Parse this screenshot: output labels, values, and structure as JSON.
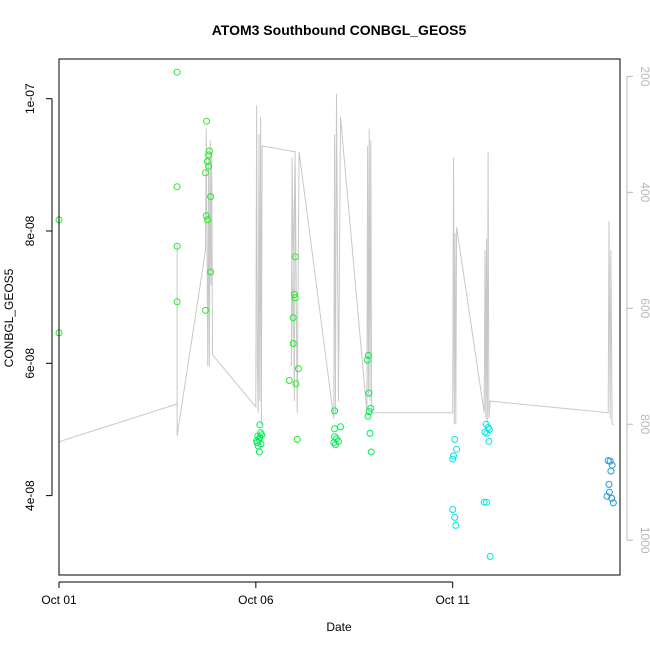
{
  "chart_data": {
    "type": "scatter",
    "title": "ATOM3 Southbound CONBGL_GEOS5",
    "xlabel": "Date",
    "ylabel": "CONBGL_GEOS5",
    "x_ticks": [
      "Oct 01",
      "Oct 06",
      "Oct 11"
    ],
    "x_tick_values": [
      1,
      6,
      11
    ],
    "xlim": [
      1,
      15.25
    ],
    "y_ticks": [
      "4e-08",
      "6e-08",
      "8e-08",
      "1e-07"
    ],
    "y_tick_values": [
      4e-08,
      6e-08,
      8e-08,
      1e-07
    ],
    "ylim": [
      2.8e-08,
      1.06e-07
    ],
    "y2_ticks": [
      "200",
      "400",
      "600",
      "800",
      "1000"
    ],
    "y2_tick_values": [
      200,
      400,
      600,
      800,
      1000
    ],
    "y2lim": [
      170,
      1060
    ],
    "y2_reversed": true,
    "grid": false,
    "colors": {
      "altitude_line": "#c8c8c8",
      "green": "#22ee22",
      "green2": "#00ee55",
      "cyan": "#00e5e5",
      "blue": "#1a9be0",
      "frame": "#000000",
      "right_axis": "#b8b8b8"
    },
    "points": [
      {
        "x": 1.0,
        "y": 8.17e-08,
        "c": "green"
      },
      {
        "x": 1.0,
        "y": 6.46e-08,
        "c": "green"
      },
      {
        "x": 4.0,
        "y": 1.04e-07,
        "c": "green"
      },
      {
        "x": 4.0,
        "y": 8.67e-08,
        "c": "green"
      },
      {
        "x": 4.0,
        "y": 7.77e-08,
        "c": "green"
      },
      {
        "x": 4.0,
        "y": 6.93e-08,
        "c": "green"
      },
      {
        "x": 4.75,
        "y": 9.66e-08,
        "c": "green"
      },
      {
        "x": 4.72,
        "y": 8.88e-08,
        "c": "green"
      },
      {
        "x": 4.77,
        "y": 9.05e-08,
        "c": "green"
      },
      {
        "x": 4.8,
        "y": 9.15e-08,
        "c": "green"
      },
      {
        "x": 4.82,
        "y": 9.21e-08,
        "c": "green"
      },
      {
        "x": 4.8,
        "y": 8.98e-08,
        "c": "green"
      },
      {
        "x": 4.85,
        "y": 8.52e-08,
        "c": "green"
      },
      {
        "x": 4.74,
        "y": 8.23e-08,
        "c": "green"
      },
      {
        "x": 4.77,
        "y": 8.17e-08,
        "c": "green"
      },
      {
        "x": 4.85,
        "y": 7.38e-08,
        "c": "green"
      },
      {
        "x": 4.72,
        "y": 6.8e-08,
        "c": "green"
      },
      {
        "x": 6.1,
        "y": 5.07e-08,
        "c": "green2"
      },
      {
        "x": 6.12,
        "y": 4.95e-08,
        "c": "green2"
      },
      {
        "x": 6.05,
        "y": 4.9e-08,
        "c": "green2"
      },
      {
        "x": 6.08,
        "y": 4.85e-08,
        "c": "green2"
      },
      {
        "x": 6.03,
        "y": 4.8e-08,
        "c": "green2"
      },
      {
        "x": 6.1,
        "y": 4.88e-08,
        "c": "green2"
      },
      {
        "x": 6.06,
        "y": 4.75e-08,
        "c": "green2"
      },
      {
        "x": 6.09,
        "y": 4.66e-08,
        "c": "green2"
      },
      {
        "x": 6.15,
        "y": 4.92e-08,
        "c": "green2"
      },
      {
        "x": 6.02,
        "y": 4.83e-08,
        "c": "green2"
      },
      {
        "x": 6.13,
        "y": 4.78e-08,
        "c": "green2"
      },
      {
        "x": 7.0,
        "y": 7.61e-08,
        "c": "green"
      },
      {
        "x": 6.98,
        "y": 7.04e-08,
        "c": "green"
      },
      {
        "x": 7.0,
        "y": 6.99e-08,
        "c": "green"
      },
      {
        "x": 6.95,
        "y": 6.69e-08,
        "c": "green"
      },
      {
        "x": 6.95,
        "y": 6.3e-08,
        "c": "green"
      },
      {
        "x": 7.08,
        "y": 5.92e-08,
        "c": "green"
      },
      {
        "x": 6.85,
        "y": 5.74e-08,
        "c": "green"
      },
      {
        "x": 7.02,
        "y": 5.69e-08,
        "c": "green"
      },
      {
        "x": 7.05,
        "y": 4.85e-08,
        "c": "green"
      },
      {
        "x": 8.0,
        "y": 5.28e-08,
        "c": "green2"
      },
      {
        "x": 8.0,
        "y": 5.01e-08,
        "c": "green2"
      },
      {
        "x": 8.15,
        "y": 5.04e-08,
        "c": "green2"
      },
      {
        "x": 8.0,
        "y": 4.89e-08,
        "c": "green2"
      },
      {
        "x": 8.05,
        "y": 4.86e-08,
        "c": "green2"
      },
      {
        "x": 7.98,
        "y": 4.8e-08,
        "c": "green2"
      },
      {
        "x": 8.1,
        "y": 4.82e-08,
        "c": "green2"
      },
      {
        "x": 8.02,
        "y": 4.77e-08,
        "c": "green2"
      },
      {
        "x": 8.86,
        "y": 6.12e-08,
        "c": "green2"
      },
      {
        "x": 8.83,
        "y": 6.05e-08,
        "c": "green2"
      },
      {
        "x": 8.87,
        "y": 5.55e-08,
        "c": "green2"
      },
      {
        "x": 8.92,
        "y": 5.32e-08,
        "c": "green2"
      },
      {
        "x": 8.88,
        "y": 5.27e-08,
        "c": "green2"
      },
      {
        "x": 8.85,
        "y": 5.2e-08,
        "c": "green2"
      },
      {
        "x": 8.9,
        "y": 4.94e-08,
        "c": "green2"
      },
      {
        "x": 8.93,
        "y": 4.66e-08,
        "c": "green2"
      },
      {
        "x": 11.05,
        "y": 4.85e-08,
        "c": "cyan"
      },
      {
        "x": 11.1,
        "y": 4.7e-08,
        "c": "cyan"
      },
      {
        "x": 11.02,
        "y": 4.6e-08,
        "c": "cyan"
      },
      {
        "x": 11.0,
        "y": 4.55e-08,
        "c": "cyan"
      },
      {
        "x": 11.0,
        "y": 3.79e-08,
        "c": "cyan"
      },
      {
        "x": 11.05,
        "y": 3.67e-08,
        "c": "cyan"
      },
      {
        "x": 11.08,
        "y": 3.55e-08,
        "c": "cyan"
      },
      {
        "x": 11.85,
        "y": 5.08e-08,
        "c": "cyan"
      },
      {
        "x": 11.9,
        "y": 5.03e-08,
        "c": "cyan"
      },
      {
        "x": 11.82,
        "y": 4.96e-08,
        "c": "cyan"
      },
      {
        "x": 11.87,
        "y": 4.94e-08,
        "c": "cyan"
      },
      {
        "x": 11.93,
        "y": 5e-08,
        "c": "cyan"
      },
      {
        "x": 11.92,
        "y": 4.82e-08,
        "c": "cyan"
      },
      {
        "x": 11.8,
        "y": 3.9e-08,
        "c": "cyan"
      },
      {
        "x": 11.86,
        "y": 3.9e-08,
        "c": "cyan"
      },
      {
        "x": 11.95,
        "y": 3.08e-08,
        "c": "cyan"
      },
      {
        "x": 14.95,
        "y": 4.53e-08,
        "c": "blue"
      },
      {
        "x": 15.0,
        "y": 4.52e-08,
        "c": "blue"
      },
      {
        "x": 15.05,
        "y": 4.46e-08,
        "c": "blue"
      },
      {
        "x": 15.02,
        "y": 4.37e-08,
        "c": "blue"
      },
      {
        "x": 14.97,
        "y": 4.17e-08,
        "c": "blue"
      },
      {
        "x": 14.98,
        "y": 4.05e-08,
        "c": "blue"
      },
      {
        "x": 14.92,
        "y": 3.99e-08,
        "c": "blue"
      },
      {
        "x": 15.04,
        "y": 3.96e-08,
        "c": "blue"
      },
      {
        "x": 15.08,
        "y": 3.89e-08,
        "c": "blue"
      }
    ],
    "altitude_series": {
      "units_axis": "y2",
      "x": [
        1.0,
        1.0,
        1.0,
        4.0,
        4.0,
        4.0,
        4.72,
        4.74,
        4.78,
        4.8,
        4.82,
        4.84,
        4.86,
        4.88,
        4.9,
        6.0,
        6.02,
        6.04,
        6.06,
        6.08,
        6.1,
        6.12,
        6.14,
        6.16,
        7.0,
        6.9,
        6.92,
        6.98,
        7.0,
        7.05,
        7.1,
        7.98,
        8.0,
        8.02,
        8.05,
        8.1,
        8.15,
        8.82,
        8.84,
        8.86,
        8.88,
        8.9,
        8.92,
        8.94,
        11.0,
        11.02,
        11.04,
        11.06,
        11.08,
        11.1,
        11.8,
        11.82,
        11.84,
        11.86,
        11.88,
        11.9,
        11.92,
        11.95,
        14.95,
        14.97,
        15.0,
        15.02,
        15.05,
        15.1
      ],
      "y": [
        820,
        300,
        830,
        765,
        490,
        820,
        500,
        290,
        700,
        340,
        700,
        310,
        560,
        330,
        680,
        770,
        250,
        700,
        780,
        300,
        760,
        270,
        800,
        320,
        330,
        700,
        340,
        760,
        350,
        780,
        330,
        790,
        300,
        780,
        230,
        760,
        270,
        780,
        320,
        750,
        290,
        760,
        310,
        780,
        780,
        340,
        800,
        470,
        800,
        460,
        780,
        500,
        790,
        480,
        800,
        330,
        790,
        760,
        780,
        450,
        790,
        500,
        800,
        800
      ]
    }
  }
}
